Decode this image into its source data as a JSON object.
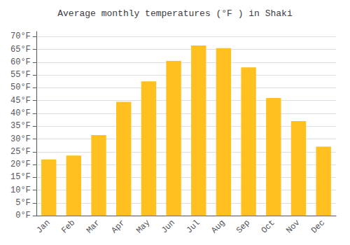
{
  "chart_data": {
    "type": "bar",
    "title": "Average monthly temperatures (°F ) in Shaki",
    "categories": [
      "Jan",
      "Feb",
      "Mar",
      "Apr",
      "May",
      "Jun",
      "Jul",
      "Aug",
      "Sep",
      "Oct",
      "Nov",
      "Dec"
    ],
    "values": [
      22,
      23.5,
      31.5,
      44.5,
      52.5,
      60.5,
      66.5,
      65.5,
      58,
      46,
      37,
      27
    ],
    "color": "#FFC020",
    "ylim": [
      0,
      72
    ],
    "yticks": [
      {
        "value": 0,
        "label": "0°F"
      },
      {
        "value": 5,
        "label": "5°F"
      },
      {
        "value": 10,
        "label": "10°F"
      },
      {
        "value": 15,
        "label": "15°F"
      },
      {
        "value": 20,
        "label": "20°F"
      },
      {
        "value": 25,
        "label": "25°F"
      },
      {
        "value": 30,
        "label": "30°F"
      },
      {
        "value": 35,
        "label": "35°F"
      },
      {
        "value": 40,
        "label": "40°F"
      },
      {
        "value": 45,
        "label": "45°F"
      },
      {
        "value": 50,
        "label": "50°F"
      },
      {
        "value": 55,
        "label": "55°F"
      },
      {
        "value": 60,
        "label": "60°F"
      },
      {
        "value": 65,
        "label": "65°F"
      },
      {
        "value": 70,
        "label": "70°F"
      }
    ],
    "grid": true
  }
}
